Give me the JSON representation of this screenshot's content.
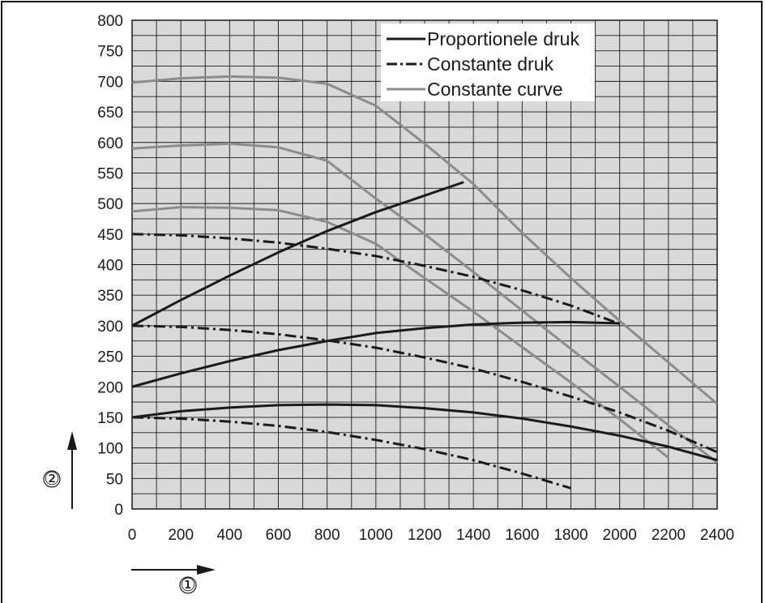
{
  "chart_data": {
    "type": "line",
    "title": "",
    "xlim": [
      0,
      2400
    ],
    "ylim": [
      0,
      800
    ],
    "x_ticks": [
      "0",
      "200",
      "400",
      "600",
      "800",
      "1000",
      "1200",
      "1400",
      "1600",
      "1800",
      "2000",
      "2200",
      "2400"
    ],
    "y_ticks": [
      "0",
      "50",
      "100",
      "150",
      "200",
      "250",
      "300",
      "350",
      "400",
      "450",
      "500",
      "550",
      "600",
      "650",
      "700",
      "750",
      "800"
    ],
    "grid": true,
    "plot_background": "#d9d9d9",
    "legend_position": "top-right",
    "legend": [
      {
        "label": "Proportionele druk",
        "color": "#1a1a1a",
        "style": "solid"
      },
      {
        "label": "Constante druk",
        "color": "#1a1a1a",
        "style": "dashdot"
      },
      {
        "label": "Constante curve",
        "color": "#8c8c8c",
        "style": "solid"
      }
    ],
    "x_axis_marker": "①",
    "y_axis_marker": "②",
    "series": [
      {
        "group": "Proportionele druk",
        "color": "#1a1a1a",
        "style": "solid",
        "points": [
          [
            0,
            300
          ],
          [
            200,
            342
          ],
          [
            400,
            382
          ],
          [
            600,
            420
          ],
          [
            800,
            455
          ],
          [
            1000,
            486
          ],
          [
            1200,
            513
          ],
          [
            1360,
            535
          ]
        ]
      },
      {
        "group": "Proportionele druk",
        "color": "#1a1a1a",
        "style": "solid",
        "points": [
          [
            0,
            200
          ],
          [
            200,
            222
          ],
          [
            400,
            242
          ],
          [
            600,
            260
          ],
          [
            800,
            275
          ],
          [
            1000,
            288
          ],
          [
            1200,
            296
          ],
          [
            1400,
            302
          ],
          [
            1600,
            305
          ],
          [
            1800,
            306
          ],
          [
            2000,
            304
          ]
        ]
      },
      {
        "group": "Proportionele druk",
        "color": "#1a1a1a",
        "style": "solid",
        "points": [
          [
            0,
            150
          ],
          [
            200,
            160
          ],
          [
            400,
            166
          ],
          [
            600,
            170
          ],
          [
            800,
            171
          ],
          [
            1000,
            170
          ],
          [
            1200,
            165
          ],
          [
            1400,
            158
          ],
          [
            1600,
            148
          ],
          [
            1800,
            135
          ],
          [
            2000,
            120
          ],
          [
            2200,
            102
          ],
          [
            2400,
            80
          ]
        ]
      },
      {
        "group": "Constante druk",
        "color": "#1a1a1a",
        "style": "dashdot",
        "points": [
          [
            0,
            450
          ],
          [
            200,
            448
          ],
          [
            400,
            443
          ],
          [
            600,
            436
          ],
          [
            800,
            426
          ],
          [
            1000,
            414
          ],
          [
            1200,
            398
          ],
          [
            1400,
            380
          ],
          [
            1600,
            358
          ],
          [
            1800,
            333
          ],
          [
            2000,
            303
          ]
        ]
      },
      {
        "group": "Constante druk",
        "color": "#1a1a1a",
        "style": "dashdot",
        "points": [
          [
            0,
            300
          ],
          [
            200,
            298
          ],
          [
            400,
            293
          ],
          [
            600,
            286
          ],
          [
            800,
            276
          ],
          [
            1000,
            264
          ],
          [
            1200,
            248
          ],
          [
            1400,
            230
          ],
          [
            1600,
            208
          ],
          [
            1800,
            184
          ],
          [
            2000,
            158
          ],
          [
            2200,
            128
          ],
          [
            2400,
            93
          ]
        ]
      },
      {
        "group": "Constante druk",
        "color": "#1a1a1a",
        "style": "dashdot",
        "points": [
          [
            0,
            150
          ],
          [
            200,
            148
          ],
          [
            400,
            143
          ],
          [
            600,
            136
          ],
          [
            800,
            126
          ],
          [
            1000,
            113
          ],
          [
            1200,
            98
          ],
          [
            1400,
            80
          ],
          [
            1600,
            58
          ],
          [
            1800,
            34
          ]
        ]
      },
      {
        "group": "Constante curve",
        "color": "#8c8c8c",
        "style": "solid",
        "points": [
          [
            0,
            698
          ],
          [
            200,
            705
          ],
          [
            400,
            708
          ],
          [
            600,
            706
          ],
          [
            800,
            696
          ],
          [
            1000,
            660
          ],
          [
            1200,
            598
          ],
          [
            1400,
            532
          ],
          [
            1600,
            452
          ],
          [
            1800,
            378
          ],
          [
            2000,
            308
          ],
          [
            2200,
            240
          ],
          [
            2400,
            172
          ]
        ]
      },
      {
        "group": "Constante curve",
        "color": "#8c8c8c",
        "style": "solid",
        "points": [
          [
            0,
            590
          ],
          [
            200,
            595
          ],
          [
            400,
            598
          ],
          [
            600,
            592
          ],
          [
            800,
            570
          ],
          [
            1000,
            508
          ],
          [
            1200,
            450
          ],
          [
            1400,
            388
          ],
          [
            1600,
            325
          ],
          [
            1800,
            262
          ],
          [
            2000,
            200
          ],
          [
            2200,
            137
          ],
          [
            2400,
            76
          ]
        ]
      },
      {
        "group": "Constante curve",
        "color": "#8c8c8c",
        "style": "solid",
        "points": [
          [
            0,
            487
          ],
          [
            200,
            494
          ],
          [
            400,
            493
          ],
          [
            600,
            489
          ],
          [
            800,
            470
          ],
          [
            1000,
            434
          ],
          [
            1200,
            378
          ],
          [
            1400,
            323
          ],
          [
            1600,
            265
          ],
          [
            1800,
            207
          ],
          [
            2000,
            147
          ],
          [
            2200,
            84
          ]
        ]
      }
    ]
  }
}
